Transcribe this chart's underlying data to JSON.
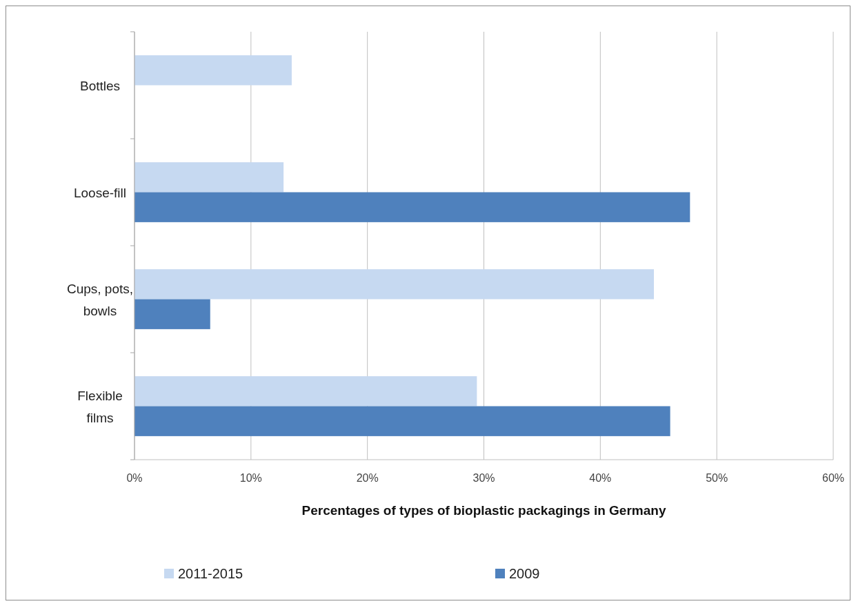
{
  "chart_data": {
    "type": "bar",
    "orientation": "horizontal",
    "xlabel": "Percentages of types of bioplastic packagings in Germany",
    "categories": [
      "Bottles",
      "Loose-fill",
      "Cups, pots, bowls",
      "Flexible films"
    ],
    "series": [
      {
        "name": "2011-2015",
        "color": "#c6d9f1",
        "values": [
          13.5,
          12.8,
          44.6,
          29.4
        ]
      },
      {
        "name": "2009",
        "color": "#4f81bd",
        "values": [
          null,
          47.7,
          6.5,
          46.0
        ]
      }
    ],
    "xlim": [
      0,
      60
    ],
    "xticks": [
      {
        "value": 0,
        "label": "0%"
      },
      {
        "value": 10,
        "label": "10%"
      },
      {
        "value": 20,
        "label": "20%"
      },
      {
        "value": 30,
        "label": "30%"
      },
      {
        "value": 40,
        "label": "40%"
      },
      {
        "value": 50,
        "label": "50%"
      },
      {
        "value": 60,
        "label": "60%"
      }
    ],
    "grid": "x",
    "legend": "bottom"
  }
}
